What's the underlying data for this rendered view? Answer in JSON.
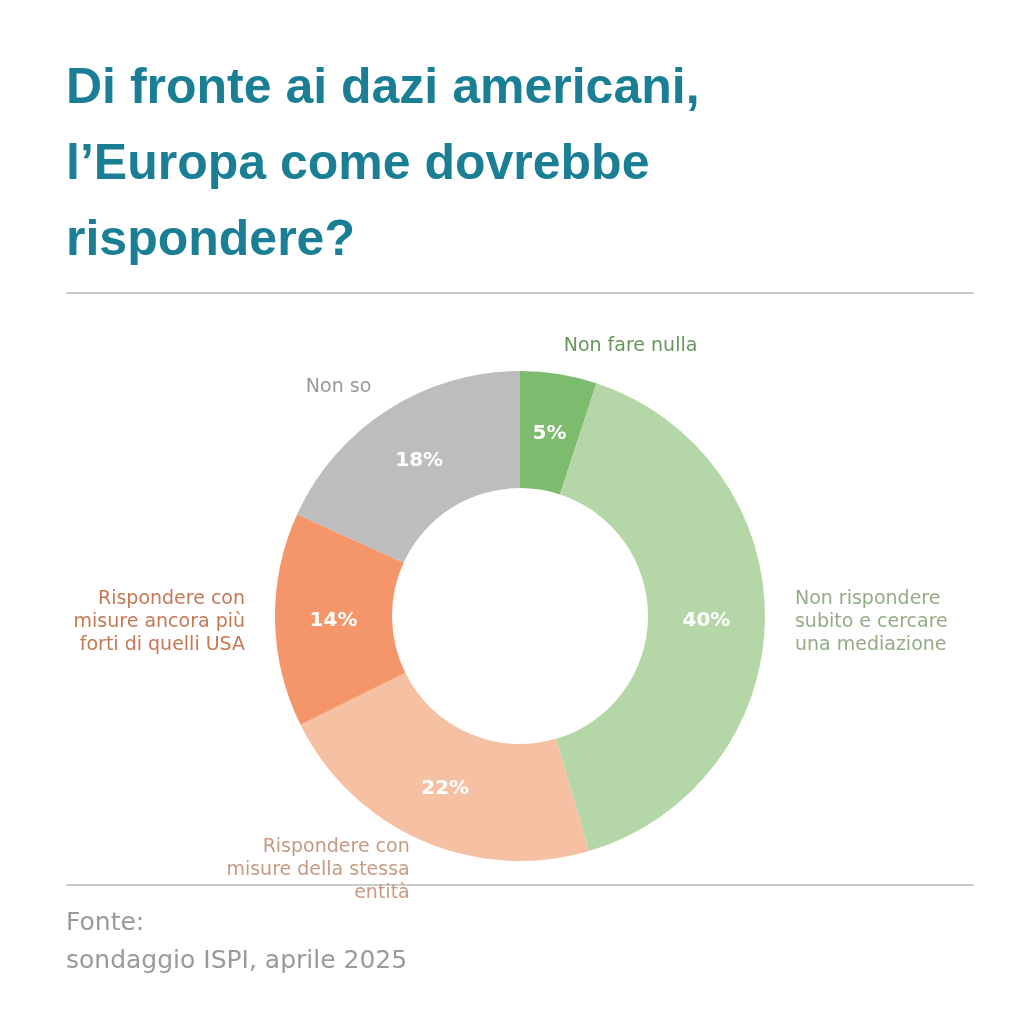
{
  "chart_data": {
    "type": "donut",
    "title": "Di fronte ai dazi americani, l’Europa come dovrebbe rispondere?",
    "categories": [
      "Non fare nulla",
      "Non rispondere subito e cercare una mediazione",
      "Rispondere con misure della stessa entità",
      "Rispondere con misure ancora più forti di quelli USA",
      "Non so"
    ],
    "values": [
      5,
      40,
      22,
      14,
      18
    ],
    "colors": [
      "#7dbb6f",
      "#b5d6a6",
      "#f6c0a2",
      "#f4956a",
      "#bdbdbd"
    ],
    "value_labels": [
      "5%",
      "40%",
      "22%",
      "14%",
      "18%"
    ],
    "annotations": [
      "Fonte:",
      "sondaggio ISPI, aprile 2025"
    ]
  }
}
